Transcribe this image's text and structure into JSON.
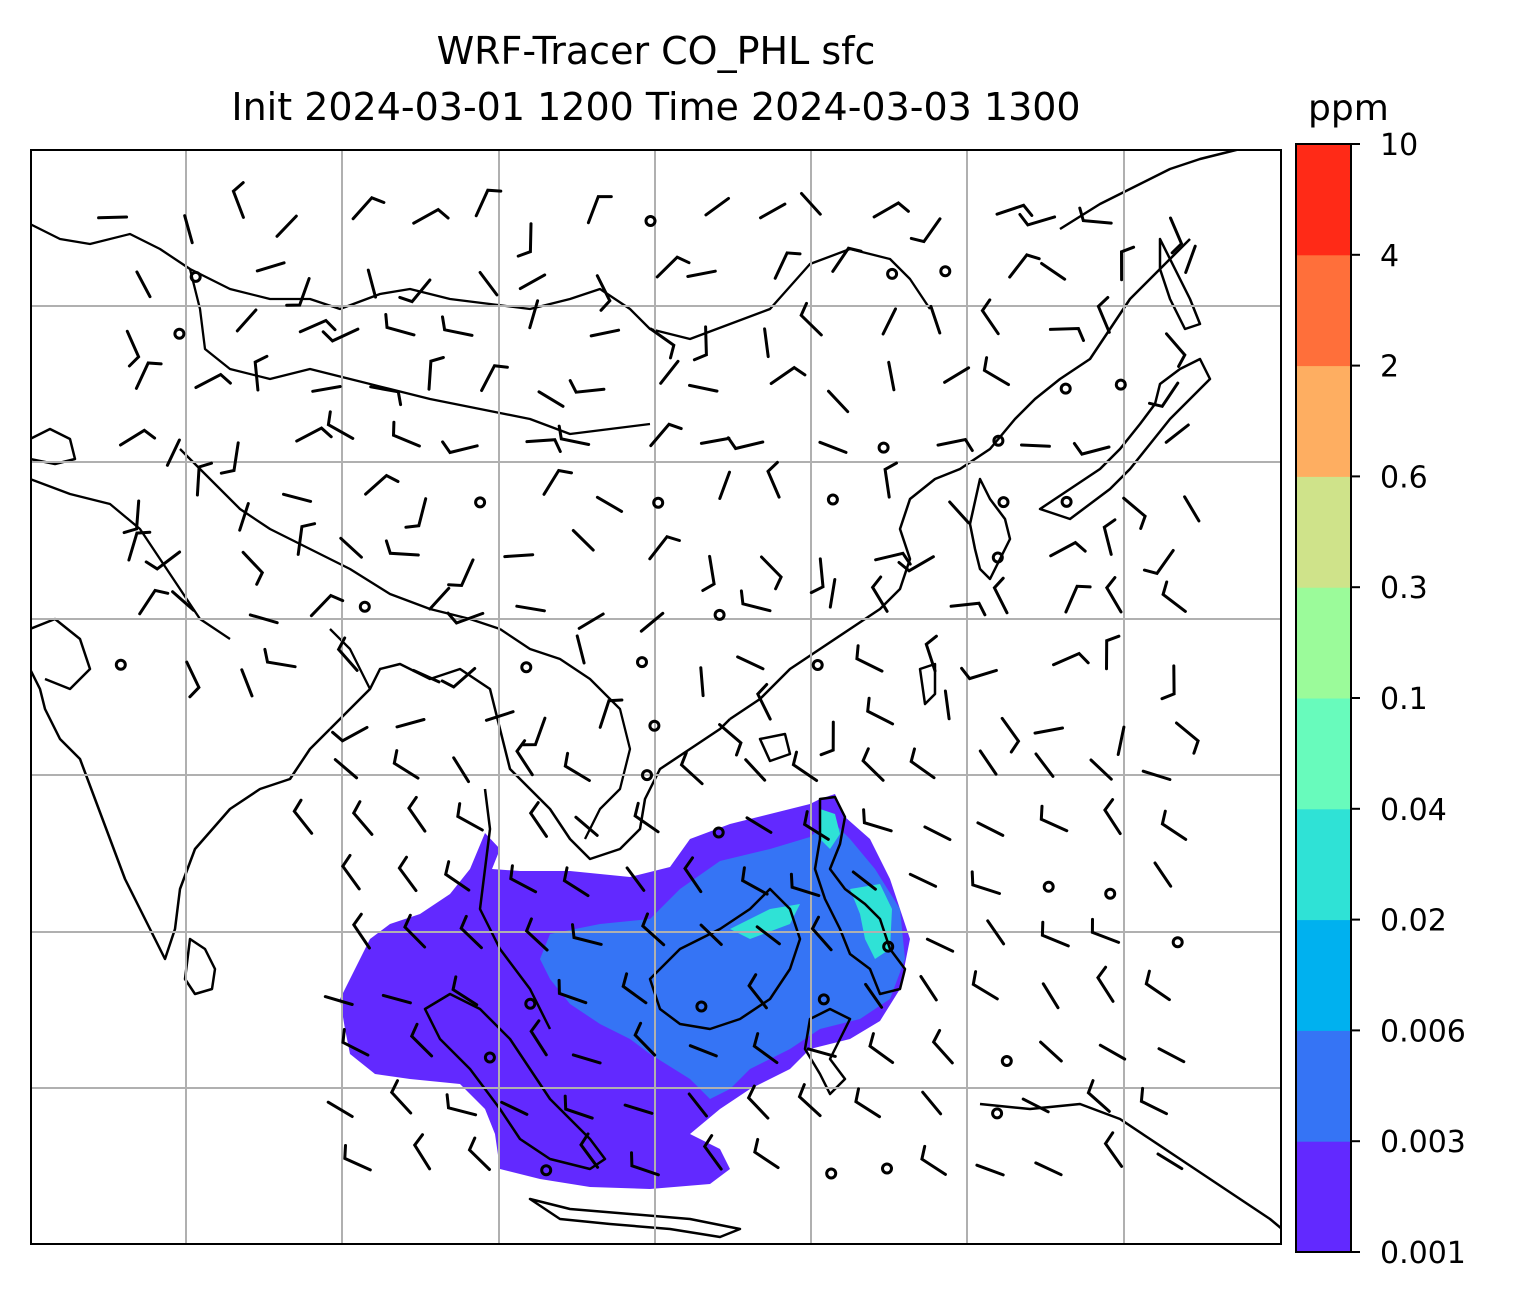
{
  "title": {
    "line1": "WRF-Tracer CO_PHL sfc",
    "line2": "Init 2024-03-01 1200 Time 2024-03-03 1300"
  },
  "colorbar": {
    "unit": "ppm",
    "levels": [
      "0.001",
      "0.003",
      "0.006",
      "0.02",
      "0.04",
      "0.1",
      "0.3",
      "0.6",
      "2",
      "4",
      "10"
    ],
    "colors": [
      "#6229ff",
      "#3574f5",
      "#00b1ef",
      "#2fe2d6",
      "#68fbbc",
      "#9bfb9a",
      "#cfe38a",
      "#feae61",
      "#ff6f3a",
      "#ff2a17"
    ]
  },
  "map": {
    "colors": {
      "coast": "#000000",
      "grid": "#b0b0b0",
      "plume_low": "#6229ff",
      "plume_mid": "#3574f5",
      "plume_high": "#2fe2d6"
    }
  }
}
